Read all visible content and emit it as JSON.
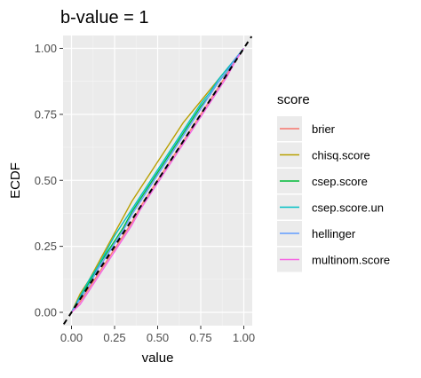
{
  "chart_data": {
    "type": "line",
    "title": "b-value = 1",
    "xlabel": "value",
    "ylabel": "ECDF",
    "xlim": [
      0,
      1
    ],
    "ylim": [
      0,
      1
    ],
    "x_ticks": [
      "0.00",
      "0.25",
      "0.50",
      "0.75",
      "1.00"
    ],
    "y_ticks": [
      "0.00",
      "0.25",
      "0.50",
      "0.75",
      "1.00"
    ],
    "grid": true,
    "legend_title": "score",
    "legend_position": "right",
    "reference_line": {
      "style": "dashed",
      "color": "#000000",
      "x": [
        0,
        1
      ],
      "y": [
        0,
        1
      ]
    },
    "series": [
      {
        "name": "brier",
        "color": "#F8766D",
        "x": [
          0,
          0.05,
          0.1,
          0.15,
          0.2,
          0.25,
          0.3,
          0.35,
          0.4,
          0.45,
          0.5,
          0.55,
          0.6,
          0.65,
          0.7,
          0.75,
          0.8,
          0.85,
          0.9,
          0.95,
          1.0
        ],
        "y": [
          0,
          0.04,
          0.09,
          0.14,
          0.19,
          0.24,
          0.29,
          0.34,
          0.4,
          0.45,
          0.5,
          0.55,
          0.6,
          0.65,
          0.7,
          0.75,
          0.8,
          0.85,
          0.9,
          0.95,
          1.0
        ]
      },
      {
        "name": "chisq.score",
        "color": "#B79F00",
        "x": [
          0,
          0.05,
          0.1,
          0.15,
          0.2,
          0.25,
          0.3,
          0.35,
          0.4,
          0.45,
          0.5,
          0.55,
          0.6,
          0.65,
          0.7,
          0.75,
          0.8,
          0.85,
          0.9,
          0.95,
          1.0
        ],
        "y": [
          0,
          0.07,
          0.12,
          0.18,
          0.24,
          0.3,
          0.36,
          0.42,
          0.47,
          0.52,
          0.57,
          0.62,
          0.67,
          0.72,
          0.76,
          0.8,
          0.84,
          0.88,
          0.92,
          0.96,
          1.0
        ]
      },
      {
        "name": "csep.score",
        "color": "#00BA38",
        "x": [
          0,
          0.05,
          0.1,
          0.15,
          0.2,
          0.25,
          0.3,
          0.35,
          0.4,
          0.45,
          0.5,
          0.55,
          0.6,
          0.65,
          0.7,
          0.75,
          0.8,
          0.85,
          0.9,
          0.95,
          1.0
        ],
        "y": [
          0,
          0.06,
          0.11,
          0.17,
          0.22,
          0.27,
          0.32,
          0.38,
          0.43,
          0.48,
          0.53,
          0.58,
          0.63,
          0.68,
          0.73,
          0.78,
          0.82,
          0.87,
          0.91,
          0.96,
          1.0
        ]
      },
      {
        "name": "csep.score.un",
        "color": "#00BFC4",
        "x": [
          0,
          0.05,
          0.1,
          0.15,
          0.2,
          0.25,
          0.3,
          0.35,
          0.4,
          0.45,
          0.5,
          0.55,
          0.6,
          0.65,
          0.7,
          0.75,
          0.8,
          0.85,
          0.9,
          0.95,
          1.0
        ],
        "y": [
          0,
          0.06,
          0.12,
          0.17,
          0.23,
          0.29,
          0.34,
          0.39,
          0.44,
          0.49,
          0.54,
          0.59,
          0.64,
          0.69,
          0.74,
          0.79,
          0.83,
          0.88,
          0.92,
          0.96,
          1.0
        ]
      },
      {
        "name": "hellinger",
        "color": "#619CFF",
        "x": [
          0,
          0.05,
          0.1,
          0.15,
          0.2,
          0.25,
          0.3,
          0.35,
          0.4,
          0.45,
          0.5,
          0.55,
          0.6,
          0.65,
          0.7,
          0.75,
          0.8,
          0.85,
          0.9,
          0.95,
          1.0
        ],
        "y": [
          0,
          0.05,
          0.1,
          0.16,
          0.21,
          0.26,
          0.31,
          0.37,
          0.42,
          0.47,
          0.52,
          0.57,
          0.62,
          0.67,
          0.72,
          0.77,
          0.82,
          0.87,
          0.91,
          0.96,
          1.0
        ]
      },
      {
        "name": "multinom.score",
        "color": "#F564E3",
        "x": [
          0,
          0.05,
          0.1,
          0.15,
          0.2,
          0.25,
          0.3,
          0.35,
          0.4,
          0.45,
          0.5,
          0.55,
          0.6,
          0.65,
          0.7,
          0.75,
          0.8,
          0.85,
          0.9,
          0.95,
          1.0
        ],
        "y": [
          0,
          0.03,
          0.08,
          0.13,
          0.18,
          0.23,
          0.28,
          0.33,
          0.39,
          0.44,
          0.49,
          0.54,
          0.59,
          0.64,
          0.69,
          0.74,
          0.79,
          0.84,
          0.89,
          0.95,
          1.0
        ]
      }
    ]
  }
}
